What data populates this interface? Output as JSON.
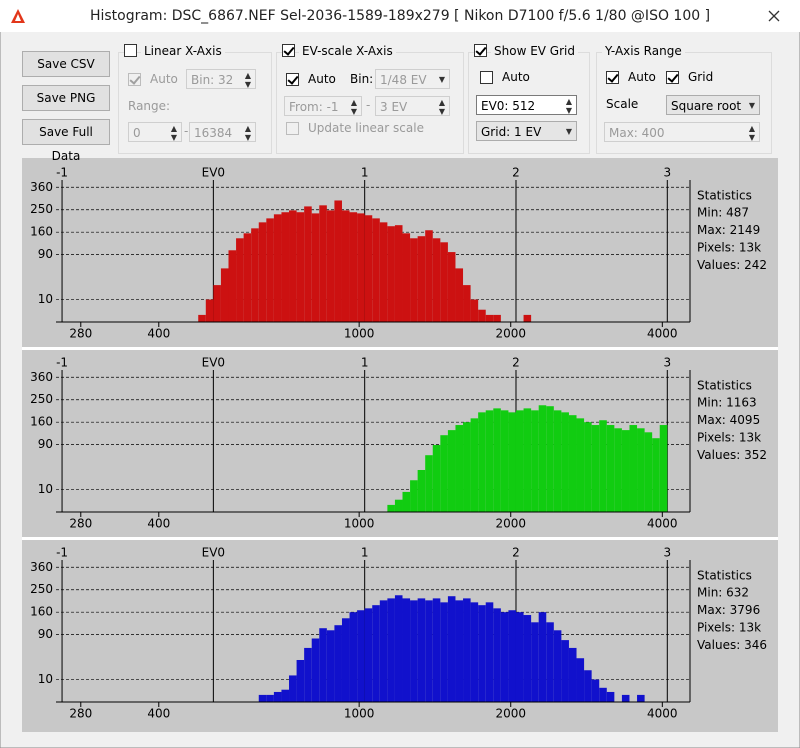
{
  "window": {
    "title": "Histogram: DSC_6867.NEF Sel-2036-1589-189x279 [ Nikon D7100 f/5.6 1/80 @ISO 100 ]"
  },
  "toolbar": {
    "buttons": [
      "Save CSV",
      "Save PNG",
      "Save Full Data"
    ],
    "linear": {
      "label": "Linear X-Axis",
      "checked": false,
      "auto": "Auto",
      "auto_checked": true,
      "bin": "Bin: 32",
      "range": "Range:",
      "from": "0",
      "separator": "-",
      "to": "16384"
    },
    "ev": {
      "label": "EV-scale X-Axis",
      "checked": true,
      "auto": "Auto",
      "auto_checked": true,
      "bin_label": "Bin:",
      "bin": "1/48 EV",
      "from": "From: -1",
      "separator": "-",
      "to": "3 EV",
      "update": "Update linear scale",
      "update_checked": false
    },
    "grid": {
      "label": "Show EV Grid",
      "checked": true,
      "auto": "Auto",
      "auto_checked": false,
      "ev0": "EV0: 512",
      "step": "Grid: 1 EV"
    },
    "yaxis": {
      "label": "Y-Axis Range",
      "auto": "Auto",
      "auto_checked": true,
      "grid": "Grid",
      "grid_checked": true,
      "scale_label": "Scale",
      "scale": "Square root",
      "max": "Max: 400"
    }
  },
  "chart_data": [
    {
      "type": "histogram",
      "color": "#cc1111",
      "bins": [
        -0.1,
        -0.05,
        0,
        0.05,
        0.1,
        0.15,
        0.2,
        0.25,
        0.3,
        0.35,
        0.4,
        0.45,
        0.5,
        0.55,
        0.6,
        0.65,
        0.7,
        0.75,
        0.8,
        0.85,
        0.9,
        0.95,
        1,
        1.05,
        1.1,
        1.15,
        1.2,
        1.25,
        1.3,
        1.35,
        1.4,
        1.45,
        1.5,
        1.55,
        1.6,
        1.65,
        1.7,
        1.75,
        1.8,
        1.85,
        1.9,
        1.95,
        2,
        2.05,
        2.1
      ],
      "values": [
        1,
        10,
        27,
        57,
        102,
        139,
        156,
        174,
        197,
        213,
        230,
        239,
        247,
        239,
        265,
        234,
        270,
        247,
        293,
        247,
        239,
        234,
        226,
        213,
        197,
        182,
        186,
        156,
        139,
        146,
        167,
        139,
        126,
        97,
        57,
        27,
        10,
        3,
        1,
        1,
        0,
        0,
        0,
        1
      ],
      "xlim": [
        -1.04,
        3.15
      ],
      "xticks": [
        -1,
        {
          "value": 0,
          "label": "EV0"
        },
        1,
        2,
        3
      ],
      "x2lim": [
        250,
        4540
      ],
      "x2scale": "log",
      "x2ticks": [
        280,
        400,
        1000,
        2000,
        4000
      ],
      "ylim": [
        0,
        400
      ],
      "yscale": "sqrt",
      "yticks": [
        10,
        90,
        160,
        250,
        360
      ],
      "grid": true,
      "stats_title": "Statistics",
      "stats": [
        "Min: 487",
        "Max: 2149",
        "Pixels: 13k",
        "Values: 242"
      ]
    },
    {
      "type": "histogram",
      "color": "#11cc11",
      "bins": [
        1.15,
        1.2,
        1.25,
        1.3,
        1.35,
        1.4,
        1.45,
        1.5,
        1.55,
        1.6,
        1.65,
        1.7,
        1.75,
        1.8,
        1.85,
        1.9,
        1.95,
        2,
        2.05,
        2.1,
        2.15,
        2.2,
        2.25,
        2.3,
        2.35,
        2.4,
        2.45,
        2.5,
        2.55,
        2.6,
        2.65,
        2.7,
        2.75,
        2.8,
        2.85,
        2.9,
        2.95,
        3
      ],
      "values": [
        1,
        3,
        8,
        20,
        35,
        64,
        89,
        117,
        133,
        150,
        160,
        174,
        197,
        205,
        213,
        205,
        197,
        205,
        213,
        205,
        226,
        222,
        205,
        197,
        186,
        174,
        160,
        150,
        167,
        150,
        139,
        133,
        150,
        139,
        126,
        108,
        150
      ],
      "xlim": [
        -1.04,
        3.15
      ],
      "xticks": [
        -1,
        {
          "value": 0,
          "label": "EV0"
        },
        1,
        2,
        3
      ],
      "x2lim": [
        250,
        4540
      ],
      "x2scale": "log",
      "x2ticks": [
        280,
        400,
        1000,
        2000,
        4000
      ],
      "ylim": [
        0,
        400
      ],
      "yscale": "sqrt",
      "yticks": [
        10,
        90,
        160,
        250,
        360
      ],
      "grid": true,
      "stats_title": "Statistics",
      "stats": [
        "Min: 1163",
        "Max: 4095",
        "Pixels: 13k",
        "Values: 352"
      ]
    },
    {
      "type": "histogram",
      "color": "#1111cc",
      "bins": [
        0.3,
        0.35,
        0.4,
        0.45,
        0.5,
        0.55,
        0.6,
        0.65,
        0.7,
        0.75,
        0.8,
        0.85,
        0.9,
        0.95,
        1,
        1.05,
        1.1,
        1.15,
        1.2,
        1.25,
        1.3,
        1.35,
        1.4,
        1.45,
        1.5,
        1.55,
        1.6,
        1.65,
        1.7,
        1.75,
        1.8,
        1.85,
        1.9,
        1.95,
        2,
        2.05,
        2.1,
        2.15,
        2.2,
        2.25,
        2.3,
        2.35,
        2.4,
        2.45,
        2.5,
        2.55,
        2.6,
        2.65,
        2.7,
        2.75,
        2.8,
        2.85,
        2.9
      ],
      "values": [
        1,
        1,
        2,
        3,
        14,
        35,
        58,
        80,
        108,
        102,
        117,
        139,
        160,
        167,
        174,
        186,
        205,
        213,
        226,
        213,
        205,
        213,
        205,
        213,
        197,
        222,
        205,
        213,
        197,
        186,
        197,
        174,
        160,
        167,
        160,
        150,
        126,
        160,
        126,
        102,
        76,
        58,
        38,
        20,
        10,
        4,
        2,
        0,
        1,
        0,
        1,
        0
      ],
      "xlim": [
        -1.04,
        3.15
      ],
      "xticks": [
        -1,
        {
          "value": 0,
          "label": "EV0"
        },
        1,
        2,
        3
      ],
      "x2lim": [
        250,
        4540
      ],
      "x2scale": "log",
      "x2ticks": [
        280,
        400,
        1000,
        2000,
        4000
      ],
      "ylim": [
        0,
        400
      ],
      "yscale": "sqrt",
      "yticks": [
        10,
        90,
        160,
        250,
        360
      ],
      "grid": true,
      "stats_title": "Statistics",
      "stats": [
        "Min: 632",
        "Max: 3796",
        "Pixels: 13k",
        "Values: 346"
      ]
    }
  ]
}
